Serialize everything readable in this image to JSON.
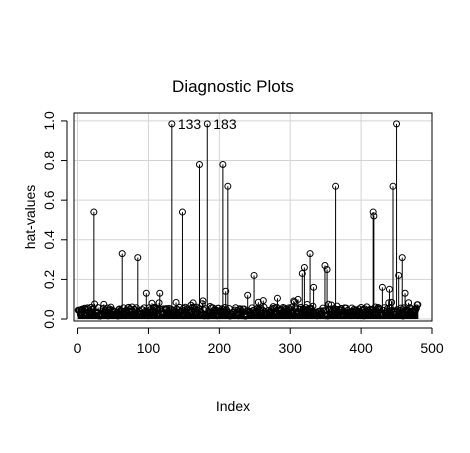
{
  "chart_data": {
    "type": "scatter",
    "title": "Diagnostic Plots",
    "xlabel": "Index",
    "ylabel": "hat-values",
    "xlim": [
      -5,
      500
    ],
    "ylim": [
      -0.01,
      1.04
    ],
    "xticks": [
      0,
      100,
      200,
      300,
      400,
      500
    ],
    "yticks": [
      0.0,
      0.2,
      0.4,
      0.6,
      0.8,
      1.0
    ],
    "xtick_labels": [
      "0",
      "100",
      "200",
      "300",
      "400",
      "500"
    ],
    "ytick_labels": [
      "0.0",
      "0.2",
      "0.4",
      "0.6",
      "0.8",
      "1.0"
    ],
    "grid": true,
    "style": "points-with-vertical-lines",
    "n_points": 480,
    "annotations": [
      {
        "text": "133",
        "x": 133,
        "y": 0.985
      },
      {
        "text": "183",
        "x": 183,
        "y": 0.985
      }
    ],
    "highlighted_points": [
      {
        "x": 23,
        "y": 0.54
      },
      {
        "x": 63,
        "y": 0.33
      },
      {
        "x": 85,
        "y": 0.31
      },
      {
        "x": 97,
        "y": 0.13
      },
      {
        "x": 116,
        "y": 0.13
      },
      {
        "x": 133,
        "y": 0.985
      },
      {
        "x": 148,
        "y": 0.54
      },
      {
        "x": 172,
        "y": 0.78
      },
      {
        "x": 183,
        "y": 0.985
      },
      {
        "x": 205,
        "y": 0.78
      },
      {
        "x": 209,
        "y": 0.14
      },
      {
        "x": 212,
        "y": 0.67
      },
      {
        "x": 240,
        "y": 0.12
      },
      {
        "x": 249,
        "y": 0.22
      },
      {
        "x": 317,
        "y": 0.23
      },
      {
        "x": 320,
        "y": 0.26
      },
      {
        "x": 328,
        "y": 0.33
      },
      {
        "x": 333,
        "y": 0.16
      },
      {
        "x": 349,
        "y": 0.27
      },
      {
        "x": 352,
        "y": 0.25
      },
      {
        "x": 364,
        "y": 0.67
      },
      {
        "x": 417,
        "y": 0.54
      },
      {
        "x": 418,
        "y": 0.52
      },
      {
        "x": 430,
        "y": 0.16
      },
      {
        "x": 440,
        "y": 0.15
      },
      {
        "x": 445,
        "y": 0.67
      },
      {
        "x": 450,
        "y": 0.985
      },
      {
        "x": 453,
        "y": 0.22
      },
      {
        "x": 458,
        "y": 0.31
      },
      {
        "x": 462,
        "y": 0.13
      }
    ]
  }
}
